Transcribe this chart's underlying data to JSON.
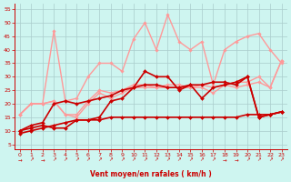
{
  "background_color": "#cef5f0",
  "grid_color": "#aacccc",
  "xlabel": "Vent moyen/en rafales ( km/h )",
  "xlabel_color": "#cc0000",
  "tick_color": "#cc0000",
  "x_ticks": [
    0,
    1,
    2,
    3,
    4,
    5,
    6,
    7,
    8,
    9,
    10,
    11,
    12,
    13,
    14,
    15,
    16,
    17,
    18,
    19,
    20,
    21,
    22,
    23
  ],
  "ylim": [
    3,
    57
  ],
  "xlim": [
    -0.5,
    23.5
  ],
  "yticks": [
    5,
    10,
    15,
    20,
    25,
    30,
    35,
    40,
    45,
    50,
    55
  ],
  "lines_dark": [
    {
      "x": [
        0,
        1,
        2,
        3,
        4,
        5,
        6,
        7,
        8,
        9,
        10,
        11,
        12,
        13,
        14,
        15,
        16,
        17,
        18,
        19,
        20,
        21,
        22,
        23
      ],
      "y": [
        10,
        12,
        13,
        20,
        21,
        20,
        21,
        22,
        23,
        25,
        26,
        27,
        27,
        26,
        26,
        27,
        27,
        28,
        28,
        27,
        30,
        15,
        16,
        17
      ],
      "color": "#cc0000",
      "lw": 1.2,
      "marker": "D",
      "ms": 2.0
    },
    {
      "x": [
        0,
        1,
        2,
        3,
        4,
        5,
        6,
        7,
        8,
        9,
        10,
        11,
        12,
        13,
        14,
        15,
        16,
        17,
        18,
        19,
        20,
        21,
        22,
        23
      ],
      "y": [
        10,
        11,
        12,
        11,
        11,
        14,
        14,
        15,
        21,
        22,
        26,
        32,
        30,
        30,
        25,
        27,
        22,
        26,
        27,
        28,
        30,
        15,
        16,
        17
      ],
      "color": "#cc0000",
      "lw": 1.2,
      "marker": "D",
      "ms": 2.0
    },
    {
      "x": [
        0,
        1,
        2,
        3,
        4,
        5,
        6,
        7,
        8,
        9,
        10,
        11,
        12,
        13,
        14,
        15,
        16,
        17,
        18,
        19,
        20,
        21,
        22,
        23
      ],
      "y": [
        9,
        10,
        11,
        12,
        13,
        14,
        14,
        14,
        15,
        15,
        15,
        15,
        15,
        15,
        15,
        15,
        15,
        15,
        15,
        15,
        16,
        16,
        16,
        17
      ],
      "color": "#cc0000",
      "lw": 1.2,
      "marker": "D",
      "ms": 2.0
    }
  ],
  "lines_light": [
    {
      "x": [
        0,
        1,
        2,
        3,
        4,
        5,
        6,
        7,
        8,
        9,
        10,
        11,
        12,
        13,
        14,
        15,
        16,
        17,
        18,
        19,
        20,
        21,
        22,
        23
      ],
      "y": [
        16,
        20,
        20,
        47,
        21,
        22,
        30,
        35,
        35,
        32,
        44,
        50,
        40,
        53,
        43,
        40,
        43,
        27,
        40,
        43,
        45,
        46,
        40,
        35
      ],
      "color": "#ff9999",
      "lw": 1.0,
      "marker": "D",
      "ms": 1.8
    },
    {
      "x": [
        0,
        1,
        2,
        3,
        4,
        5,
        6,
        7,
        8,
        9,
        10,
        11,
        12,
        13,
        14,
        15,
        16,
        17,
        18,
        19,
        20,
        21,
        22,
        23
      ],
      "y": [
        16,
        20,
        20,
        21,
        16,
        16,
        21,
        25,
        24,
        25,
        27,
        27,
        26,
        27,
        27,
        26,
        27,
        26,
        27,
        28,
        28,
        30,
        26,
        36
      ],
      "color": "#ff9999",
      "lw": 1.0,
      "marker": "D",
      "ms": 1.8
    },
    {
      "x": [
        0,
        1,
        2,
        3,
        4,
        5,
        6,
        7,
        8,
        9,
        10,
        11,
        12,
        13,
        14,
        15,
        16,
        17,
        18,
        19,
        20,
        21,
        22,
        23
      ],
      "y": [
        16,
        20,
        20,
        21,
        16,
        15,
        20,
        24,
        22,
        24,
        26,
        26,
        26,
        26,
        26,
        26,
        26,
        24,
        27,
        26,
        27,
        28,
        26,
        36
      ],
      "color": "#ff9999",
      "lw": 1.0,
      "marker": "D",
      "ms": 1.8
    }
  ],
  "arrows": [
    "→",
    "↗",
    "→",
    "↗",
    "↗",
    "↗",
    "↗",
    "↗",
    "↗",
    "↗",
    "↗",
    "↗",
    "↗",
    "↗",
    "↗",
    "↗",
    "↗",
    "↗",
    "→",
    "→",
    "↗",
    "↗",
    "↗",
    "↗"
  ]
}
